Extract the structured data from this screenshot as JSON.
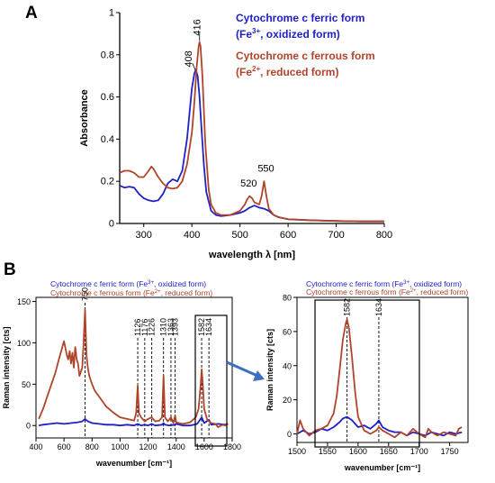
{
  "chart_data": [
    {
      "panel": "A",
      "type": "line",
      "xlabel": "wavelength λ [nm]",
      "ylabel": "Absorbance",
      "xlim": [
        250,
        800
      ],
      "ylim": [
        0,
        1
      ],
      "xticks": [
        300,
        400,
        500,
        600,
        700,
        800
      ],
      "yticks": [
        0,
        0.2,
        0.4,
        0.6,
        0.8,
        1
      ],
      "ytick_labels": [
        "0",
        "0.2",
        "0.4",
        "0.6",
        "0.8",
        "1"
      ],
      "legend": [
        {
          "line1": "Cytochrome c ferric form",
          "line2a": "(Fe",
          "sup": "3+",
          "line2b": ", oxidized form)",
          "color": "#2020c8"
        },
        {
          "line1": "Cytochrome c ferrous form",
          "line2a": "(Fe",
          "sup": "2+",
          "line2b": ", reduced form)",
          "color": "#b0442a"
        }
      ],
      "annotations": [
        {
          "text": "408",
          "x": 408,
          "y": 0.73
        },
        {
          "text": "416",
          "x": 416,
          "y": 0.86
        },
        {
          "text": "520",
          "x": 520,
          "y": 0.13
        },
        {
          "text": "550",
          "x": 550,
          "y": 0.2
        }
      ],
      "series": [
        {
          "color": "#2020c8",
          "x": [
            250,
            260,
            270,
            280,
            290,
            300,
            310,
            320,
            330,
            340,
            350,
            360,
            370,
            380,
            390,
            395,
            400,
            405,
            408,
            412,
            416,
            420,
            425,
            430,
            440,
            450,
            460,
            480,
            500,
            510,
            520,
            530,
            540,
            550,
            560,
            570,
            580,
            600,
            650,
            700,
            750,
            800
          ],
          "y": [
            0.18,
            0.17,
            0.175,
            0.17,
            0.14,
            0.12,
            0.11,
            0.105,
            0.11,
            0.14,
            0.19,
            0.21,
            0.2,
            0.25,
            0.4,
            0.52,
            0.64,
            0.71,
            0.73,
            0.7,
            0.6,
            0.45,
            0.28,
            0.15,
            0.06,
            0.04,
            0.035,
            0.04,
            0.05,
            0.06,
            0.075,
            0.085,
            0.075,
            0.07,
            0.06,
            0.04,
            0.03,
            0.02,
            0.015,
            0.012,
            0.01,
            0.01
          ]
        },
        {
          "color": "#b0442a",
          "x": [
            250,
            260,
            270,
            280,
            290,
            300,
            310,
            316,
            320,
            330,
            340,
            350,
            360,
            370,
            380,
            390,
            400,
            405,
            410,
            414,
            416,
            418,
            422,
            428,
            435,
            440,
            450,
            460,
            480,
            500,
            510,
            515,
            520,
            525,
            530,
            540,
            545,
            550,
            555,
            560,
            570,
            580,
            600,
            650,
            700,
            750,
            800
          ],
          "y": [
            0.24,
            0.25,
            0.25,
            0.24,
            0.22,
            0.22,
            0.25,
            0.27,
            0.26,
            0.22,
            0.19,
            0.17,
            0.165,
            0.17,
            0.2,
            0.28,
            0.43,
            0.57,
            0.74,
            0.84,
            0.86,
            0.84,
            0.7,
            0.38,
            0.16,
            0.09,
            0.05,
            0.04,
            0.04,
            0.06,
            0.09,
            0.115,
            0.13,
            0.12,
            0.1,
            0.09,
            0.13,
            0.2,
            0.13,
            0.07,
            0.04,
            0.03,
            0.02,
            0.015,
            0.012,
            0.01,
            0.01
          ]
        }
      ]
    },
    {
      "panel": "B",
      "type": "line",
      "xlabel": "wavenumber [cm⁻¹]",
      "ylabel": "Raman intensity [cts]",
      "xlim": [
        400,
        1800
      ],
      "ylim": [
        -15,
        155
      ],
      "xticks": [
        400,
        600,
        800,
        1000,
        1200,
        1400,
        1600,
        1800
      ],
      "yticks": [
        0,
        50,
        100,
        150
      ],
      "legend": [
        {
          "text": "Cytochrome c ferric form (Fe",
          "sup": "3+",
          "tail": ", oxidized form)",
          "color": "#2020c8"
        },
        {
          "text": "Cytochrome c ferrous form (Fe",
          "sup": "2+",
          "tail": ", reduced form)",
          "color": "#b0442a"
        }
      ],
      "peak_labels": [
        {
          "text": "750",
          "x": 750
        },
        {
          "text": "1126",
          "x": 1126
        },
        {
          "text": "1176",
          "x": 1176
        },
        {
          "text": "1226",
          "x": 1226
        },
        {
          "text": "1310",
          "x": 1310
        },
        {
          "text": "1363",
          "x": 1363
        },
        {
          "text": "1393",
          "x": 1393
        },
        {
          "text": "1582",
          "x": 1582
        },
        {
          "text": "1634",
          "x": 1634
        }
      ],
      "zoom_box": {
        "x": [
          1530,
          1660
        ],
        "y": [
          -8,
          88
        ]
      },
      "series": [
        {
          "color": "#2020c8",
          "x": [
            420,
            450,
            500,
            550,
            600,
            650,
            700,
            730,
            750,
            770,
            800,
            850,
            900,
            950,
            1000,
            1050,
            1100,
            1126,
            1150,
            1176,
            1200,
            1226,
            1250,
            1300,
            1310,
            1320,
            1350,
            1393,
            1400,
            1450,
            1500,
            1550,
            1582,
            1600,
            1634,
            1650,
            1700,
            1750,
            1770
          ],
          "y": [
            0,
            1,
            2,
            3,
            2,
            3,
            4,
            5,
            8,
            5,
            3,
            2,
            1,
            1,
            0,
            1,
            0,
            2,
            0,
            1,
            0,
            2,
            0,
            1,
            3,
            1,
            0,
            1,
            2,
            0,
            0,
            2,
            10,
            3,
            7,
            1,
            2,
            1,
            2
          ]
        },
        {
          "color": "#b0442a",
          "x": [
            420,
            450,
            480,
            500,
            520,
            540,
            560,
            580,
            600,
            620,
            630,
            640,
            650,
            660,
            670,
            680,
            690,
            700,
            710,
            720,
            730,
            740,
            750,
            760,
            770,
            780,
            800,
            820,
            850,
            880,
            900,
            950,
            1000,
            1050,
            1100,
            1115,
            1126,
            1135,
            1150,
            1176,
            1200,
            1226,
            1250,
            1280,
            1300,
            1310,
            1320,
            1340,
            1363,
            1380,
            1393,
            1400,
            1420,
            1450,
            1500,
            1540,
            1560,
            1575,
            1582,
            1590,
            1600,
            1620,
            1634,
            1650,
            1680,
            1700,
            1730,
            1750,
            1770
          ],
          "y": [
            8,
            20,
            35,
            45,
            55,
            65,
            78,
            90,
            102,
            85,
            80,
            90,
            75,
            88,
            70,
            95,
            80,
            75,
            60,
            65,
            70,
            100,
            140,
            85,
            70,
            60,
            50,
            42,
            35,
            28,
            23,
            16,
            10,
            8,
            6,
            15,
            48,
            15,
            10,
            5,
            8,
            10,
            5,
            6,
            10,
            60,
            10,
            5,
            10,
            3,
            12,
            4,
            3,
            2,
            4,
            10,
            20,
            50,
            68,
            50,
            20,
            8,
            5,
            3,
            2,
            -2,
            1,
            0,
            2
          ]
        }
      ]
    },
    {
      "panel": "B-zoom",
      "type": "line",
      "xlabel": "wavenumber [cm⁻¹]",
      "ylabel": "Raman intensity [cts]",
      "xlim": [
        1500,
        1780
      ],
      "ylim": [
        -5,
        80
      ],
      "xticks": [
        1500,
        1550,
        1600,
        1650,
        1700,
        1750
      ],
      "yticks": [
        0,
        20,
        40,
        60,
        80
      ],
      "legend": [
        {
          "text": "Cytochrome c ferric form (Fe",
          "sup": "3+",
          "tail": ", oxidized form)",
          "color": "#2020c8"
        },
        {
          "text": "Cytochrome c ferrous form (Fe",
          "sup": "2+",
          "tail": ", reduced form)",
          "color": "#b0442a"
        }
      ],
      "peak_labels": [
        {
          "text": "1582",
          "x": 1582
        },
        {
          "text": "1634",
          "x": 1634
        }
      ],
      "zoom_box": {
        "x": [
          1530,
          1655
        ],
        "y": [
          -8,
          80
        ]
      },
      "series": [
        {
          "color": "#2020c8",
          "x": [
            1500,
            1510,
            1520,
            1530,
            1540,
            1550,
            1560,
            1570,
            1575,
            1582,
            1590,
            1600,
            1610,
            1620,
            1630,
            1634,
            1640,
            1650,
            1660,
            1670,
            1680,
            1690,
            1700,
            1710,
            1720,
            1730,
            1740,
            1750,
            1760,
            1770
          ],
          "y": [
            0,
            2,
            0,
            1,
            3,
            2,
            4,
            7,
            9,
            10,
            8,
            4,
            5,
            3,
            6,
            8,
            4,
            2,
            1,
            1,
            -1,
            1,
            0,
            -1,
            1,
            0,
            -1,
            1,
            0,
            1
          ]
        },
        {
          "color": "#b0442a",
          "x": [
            1500,
            1505,
            1510,
            1520,
            1530,
            1540,
            1550,
            1560,
            1565,
            1570,
            1575,
            1580,
            1582,
            1585,
            1590,
            1595,
            1600,
            1610,
            1620,
            1630,
            1634,
            1640,
            1650,
            1660,
            1670,
            1680,
            1690,
            1700,
            1710,
            1715,
            1720,
            1730,
            1740,
            1750,
            1760,
            1765,
            1770
          ],
          "y": [
            0,
            8,
            3,
            -1,
            2,
            3,
            5,
            12,
            22,
            38,
            55,
            65,
            67,
            62,
            45,
            25,
            10,
            2,
            0,
            2,
            4,
            2,
            0,
            -2,
            1,
            -1,
            3,
            0,
            -2,
            3,
            1,
            -1,
            1,
            0,
            -1,
            3,
            4
          ]
        }
      ]
    }
  ]
}
